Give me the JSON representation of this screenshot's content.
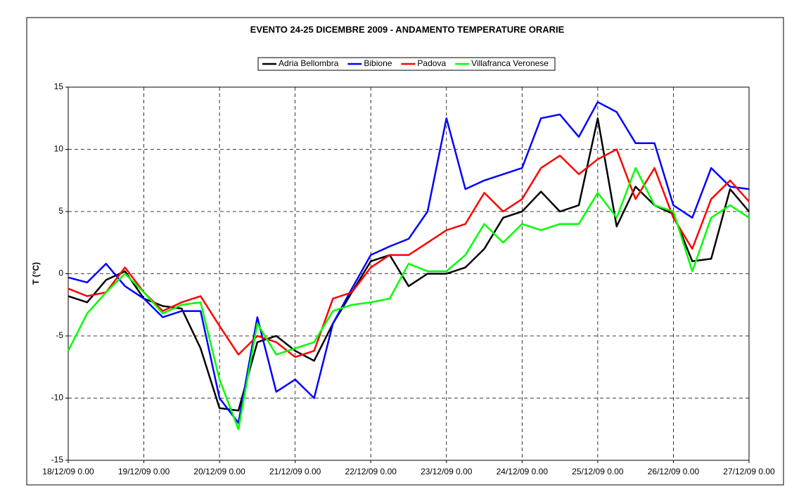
{
  "chart_data": {
    "type": "line",
    "title": "EVENTO 24-25 DICEMBRE 2009 - ANDAMENTO TEMPERATURE ORARIE",
    "y_label": "T (°C)",
    "x": [
      0,
      0.25,
      0.5,
      0.75,
      1,
      1.25,
      1.5,
      1.75,
      2,
      2.25,
      2.5,
      2.75,
      3,
      3.25,
      3.5,
      3.75,
      4,
      4.25,
      4.5,
      4.75,
      5,
      5.25,
      5.5,
      5.75,
      6,
      6.25,
      6.5,
      6.75,
      7,
      7.25,
      7.5,
      7.75,
      8,
      8.25,
      8.5,
      8.75,
      9
    ],
    "series": [
      {
        "name": "Adria Bellombra",
        "color": "#000000",
        "values": [
          -1.8,
          -2.3,
          -0.5,
          0.2,
          -2,
          -2.6,
          -2.8,
          -6,
          -10.8,
          -11,
          -5.5,
          -5,
          -6.2,
          -7,
          -4,
          -1.5,
          1,
          1.5,
          -1,
          0,
          0,
          0.5,
          2,
          4.5,
          5,
          6.6,
          5,
          5.5,
          12.5,
          3.8,
          7,
          5.5,
          4.8,
          1,
          1.2,
          6.8,
          5
        ]
      },
      {
        "name": "Bibione",
        "color": "#0000ff",
        "values": [
          -0.3,
          -0.7,
          0.8,
          -1,
          -2,
          -3.5,
          -3,
          -3,
          -10,
          -12,
          -3.5,
          -9.5,
          -8.5,
          -10,
          -4,
          -1.2,
          1.5,
          2.2,
          2.8,
          5,
          12.5,
          6.8,
          7.5,
          8,
          8.5,
          12.5,
          12.8,
          11,
          13.8,
          13,
          10.5,
          10.5,
          5.5,
          4.5,
          8.5,
          7,
          6.8
        ]
      },
      {
        "name": "Padova",
        "color": "#ff0000",
        "values": [
          -1.2,
          -1.8,
          -1.5,
          0.5,
          -1.5,
          -3,
          -2.3,
          -1.8,
          -4.2,
          -6.5,
          -5,
          -5.5,
          -6.7,
          -6.2,
          -2,
          -1.5,
          0.5,
          1.5,
          1.5,
          2.5,
          3.5,
          4,
          6.5,
          5,
          6,
          8.5,
          9.5,
          8,
          9.2,
          10,
          6,
          8.5,
          4.5,
          2,
          6,
          7.5,
          5.8
        ]
      },
      {
        "name": "Villafranca Veronese",
        "color": "#00ff00",
        "values": [
          -6.2,
          -3.2,
          -1.5,
          0,
          -1.5,
          -3.2,
          -2.5,
          -2.3,
          -8.5,
          -12.5,
          -4,
          -6.5,
          -6,
          -5.5,
          -3,
          -2.5,
          -2.3,
          -2,
          0.8,
          0.2,
          0.2,
          1.5,
          4,
          2.5,
          4,
          3.5,
          4,
          4,
          6.5,
          4.5,
          8.5,
          5.5,
          5,
          0.2,
          4.5,
          5.5,
          4.5
        ]
      }
    ],
    "xlim": [
      0,
      9
    ],
    "xticks": [
      {
        "value": 0,
        "label": "18/12/09 0.00"
      },
      {
        "value": 1,
        "label": "19/12/09 0.00"
      },
      {
        "value": 2,
        "label": "20/12/09 0.00"
      },
      {
        "value": 3,
        "label": "21/12/09 0.00"
      },
      {
        "value": 4,
        "label": "22/12/09 0.00"
      },
      {
        "value": 5,
        "label": "23/12/09 0.00"
      },
      {
        "value": 6,
        "label": "24/12/09 0.00"
      },
      {
        "value": 7,
        "label": "25/12/09 0.00"
      },
      {
        "value": 8,
        "label": "26/12/09 0.00"
      },
      {
        "value": 9,
        "label": "27/12/09 0.00"
      }
    ],
    "ylim": [
      -15,
      15
    ],
    "yticks": [
      -15,
      -10,
      -5,
      0,
      5,
      10,
      15
    ],
    "grid": true,
    "legend": "top"
  }
}
